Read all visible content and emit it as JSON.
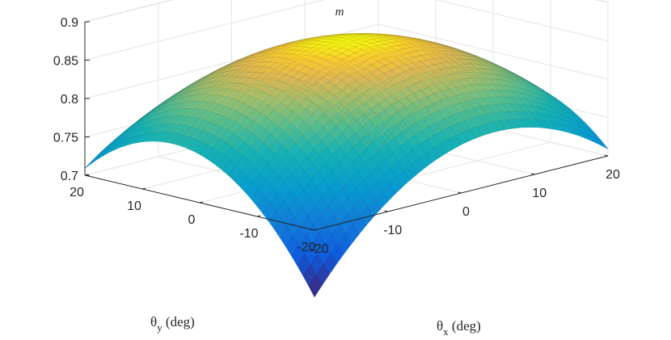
{
  "chart_data": {
    "type": "surface3d",
    "title": "m",
    "xlabel": {
      "symbol": "θ",
      "sub": "x",
      "rest": " (deg)"
    },
    "ylabel": {
      "symbol": "θ",
      "sub": "y",
      "rest": " (deg)"
    },
    "zlabel": "",
    "xlim": [
      -20,
      20
    ],
    "ylim": [
      -20,
      20
    ],
    "zlim": [
      0.7,
      0.9
    ],
    "xticks": [
      -20,
      -10,
      0,
      10,
      20
    ],
    "yticks": [
      -20,
      -10,
      0,
      10,
      20
    ],
    "zticks": [
      0.7,
      0.75,
      0.8,
      0.85,
      0.9
    ],
    "zticklabels": [
      "0.7",
      "0.75",
      "0.8",
      "0.85",
      "0.9"
    ],
    "grid": true,
    "colormap": "parula",
    "surface": {
      "peak": 0.865,
      "peak_at": [
        0,
        0
      ],
      "corner_values": {
        "x-20_y-20": 0.622,
        "x20_y20": 0.622,
        "x20_y-20": 0.718,
        "x-20_y20": 0.718
      },
      "edge_midpoints": {
        "x-20_y0": 0.763,
        "x20_y0": 0.763,
        "x0_y-20": 0.763,
        "x0_y20": 0.763
      },
      "grid_points": 41
    },
    "colors": {
      "axis": "#262626",
      "grid": "#e4e4e4",
      "mesh": "#333333"
    }
  }
}
